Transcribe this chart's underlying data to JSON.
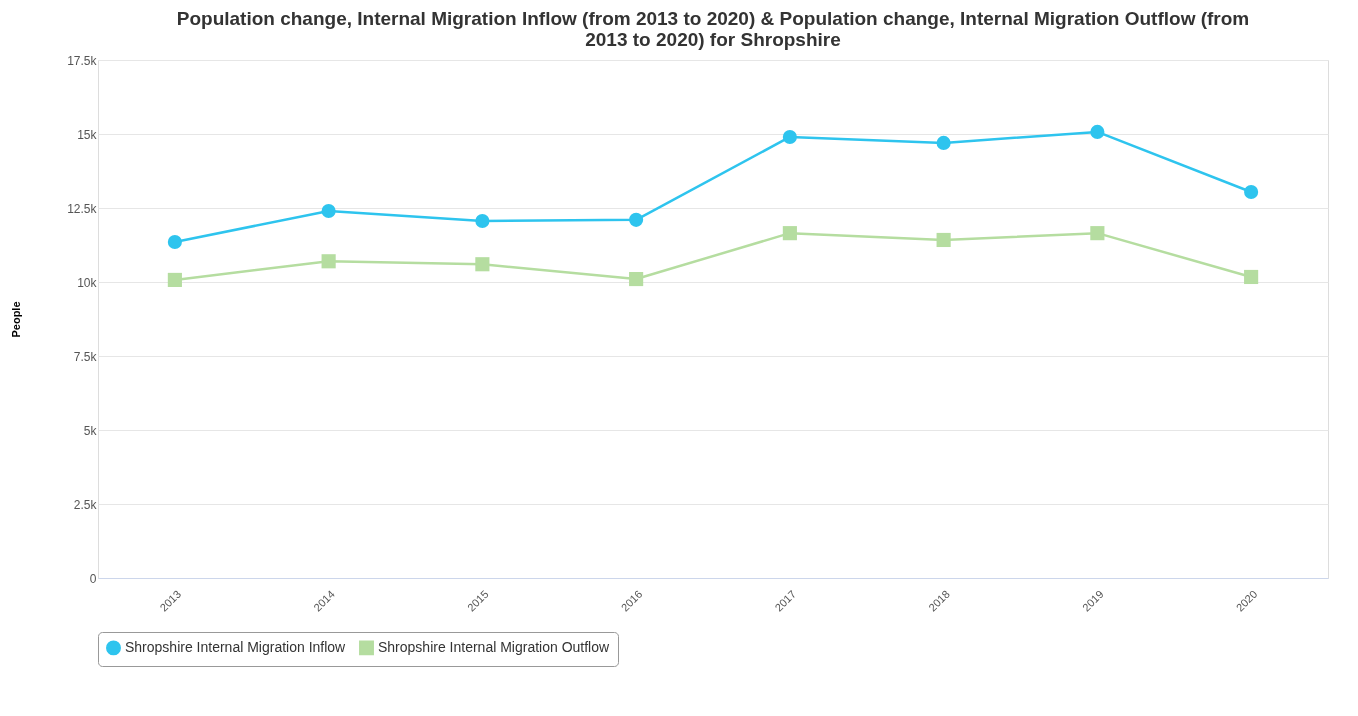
{
  "chart_data": {
    "type": "line",
    "title": "Population change, Internal Migration Inflow (from 2013 to 2020) & Population change, Internal Migration Outflow (from 2013 to 2020) for Shropshire",
    "ylabel": "People",
    "categories": [
      "2013",
      "2014",
      "2015",
      "2016",
      "2017",
      "2018",
      "2019",
      "2020"
    ],
    "series": [
      {
        "name": "Shropshire Internal Migration Inflow",
        "color": "#2ec4ee",
        "marker": "circle",
        "values": [
          11350,
          12400,
          12060,
          12100,
          14900,
          14700,
          15070,
          13040
        ]
      },
      {
        "name": "Shropshire Internal Migration Outflow",
        "color": "#b5dda0",
        "marker": "square",
        "values": [
          10070,
          10700,
          10600,
          10100,
          11650,
          11420,
          11650,
          10170
        ]
      }
    ],
    "ylim": [
      0,
      17500
    ],
    "yticks": [
      {
        "value": 0,
        "label": "0"
      },
      {
        "value": 2500,
        "label": "2.5k"
      },
      {
        "value": 5000,
        "label": "5k"
      },
      {
        "value": 7500,
        "label": "7.5k"
      },
      {
        "value": 10000,
        "label": "10k"
      },
      {
        "value": 12500,
        "label": "12.5k"
      },
      {
        "value": 15000,
        "label": "15k"
      },
      {
        "value": 17500,
        "label": "17.5k"
      }
    ],
    "grid": "y",
    "legend": "bottom",
    "line_style": "solid"
  }
}
